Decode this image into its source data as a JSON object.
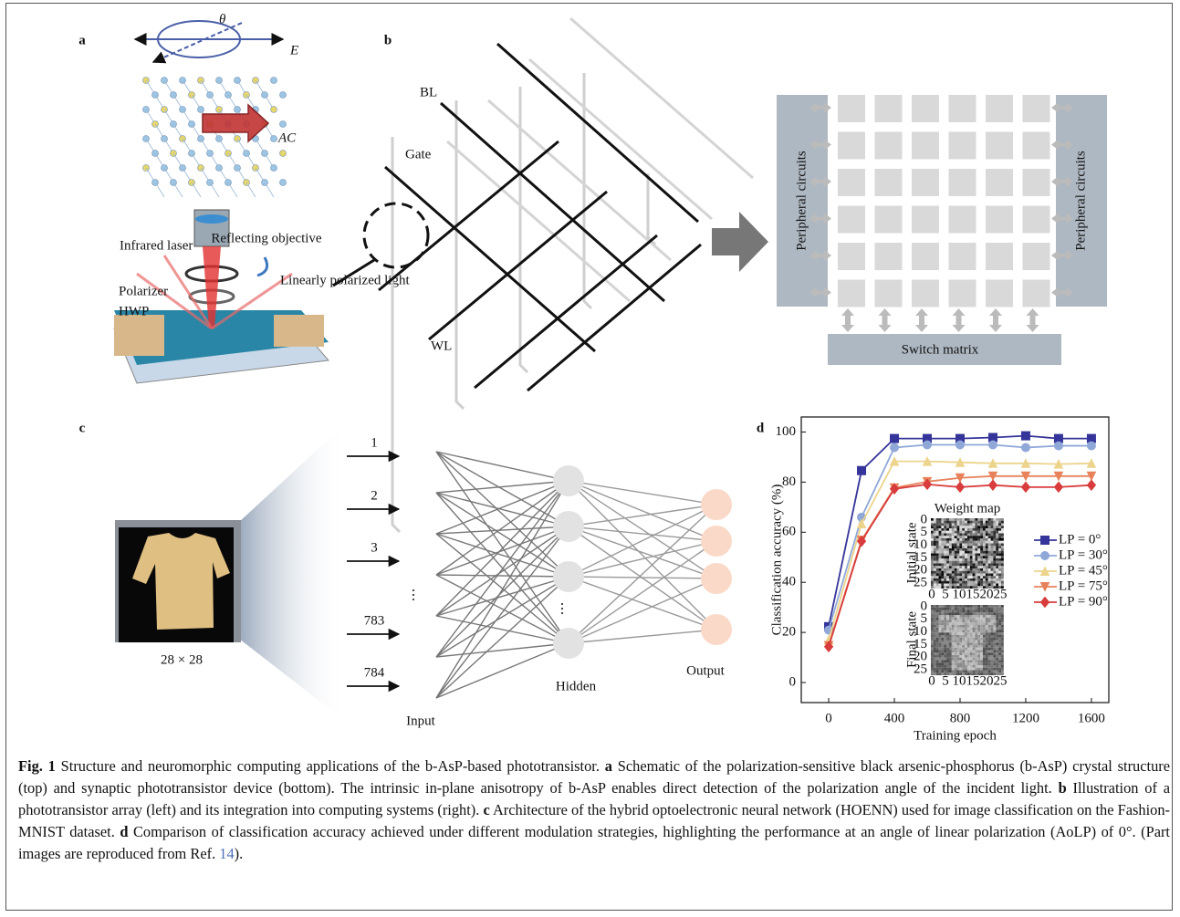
{
  "panel_labels": [
    "a",
    "b",
    "c",
    "d"
  ],
  "panel_a": {
    "theta": "θ",
    "field": "E",
    "axis": "AC",
    "laser": "Infrared laser",
    "objective": "Reflecting objective",
    "light": "Linearly polarized light",
    "polarizer": "Polarizer",
    "hwp": "HWP"
  },
  "panel_b": {
    "bl": "BL",
    "gate": "Gate",
    "wl": "WL",
    "left_circuit": "Peripheral circuits",
    "right_circuit": "Peripheral circuits",
    "switch": "Switch matrix"
  },
  "panel_c": {
    "inputs": [
      "1",
      "2",
      "3",
      "⋮",
      "783",
      "784"
    ],
    "image_size": "28 × 28",
    "input": "Input",
    "hidden": "Hidden",
    "hidden_dots": "⋮",
    "output": "Output"
  },
  "chart_data": {
    "type": "line",
    "x_label": "Training epoch",
    "y_label": "Classification accuracy (%)",
    "x": [
      0,
      200,
      400,
      600,
      800,
      1000,
      1200,
      1400,
      1600
    ],
    "xlim": [
      -167,
      1706
    ],
    "xticks": [
      0,
      400,
      800,
      1200,
      1600
    ],
    "ylim": [
      -8,
      106
    ],
    "yticks": [
      0,
      20,
      40,
      60,
      80,
      100
    ],
    "legend": "center right",
    "series": [
      {
        "name": "LP = 0°",
        "color": "#34349a",
        "marker": "square",
        "values": [
          22.3,
          84.6,
          97.4,
          97.4,
          97.4,
          97.8,
          98.5,
          97.4,
          97.4
        ]
      },
      {
        "name": "LP = 30°",
        "color": "#8fa8d8",
        "marker": "circle",
        "values": [
          20.9,
          66,
          93.8,
          94.9,
          94.9,
          94.9,
          93.8,
          94.5,
          94.5
        ]
      },
      {
        "name": "LP = 45°",
        "color": "#ecd48c",
        "marker": "triangle-up",
        "values": [
          17,
          63.4,
          88.3,
          88.3,
          87.9,
          87.5,
          87.5,
          87.2,
          87.5
        ]
      },
      {
        "name": "LP = 75°",
        "color": "#e8825a",
        "marker": "triangle-down",
        "values": [
          14.7,
          56.8,
          77.7,
          80.2,
          81.7,
          82.4,
          82.4,
          82.4,
          82.4
        ]
      },
      {
        "name": "LP = 90°",
        "color": "#d83c3c",
        "marker": "diamond",
        "values": [
          14.3,
          56.4,
          77.3,
          79.1,
          78,
          78.8,
          78,
          78,
          78.8
        ]
      }
    ],
    "inset": {
      "title": "Weight map",
      "initial": "Initial state",
      "final": "Final state",
      "ticks": [
        "0",
        "5",
        "10",
        "15",
        "20",
        "25"
      ]
    }
  },
  "caption": {
    "figure": "Fig. 1",
    "intro": "Structure and neuromorphic computing applications of the b-AsP-based phototransistor.",
    "items": [
      {
        "label": "a",
        "text": "Schematic of the polarization-sensitive black arsenic-phosphorus (b-AsP) crystal structure (top) and synaptic phototransistor device (bottom). The intrinsic in-plane anisotropy of b-AsP enables direct detection of the polarization angle of the incident light."
      },
      {
        "label": "b",
        "text": "Illustration of a phototransistor array (left) and its integration into computing systems (right)."
      },
      {
        "label": "c",
        "text": "Architecture of the hybrid optoelectronic neural network (HOENN) used for image classification on the Fashion-MNIST dataset."
      },
      {
        "label": "d",
        "text": "Comparison of classification accuracy achieved under different modulation strategies, highlighting the performance at an angle of linear polarization (AoLP) of 0°. (Part images are reproduced from Ref."
      }
    ],
    "ref": "14",
    "tail": ")."
  }
}
